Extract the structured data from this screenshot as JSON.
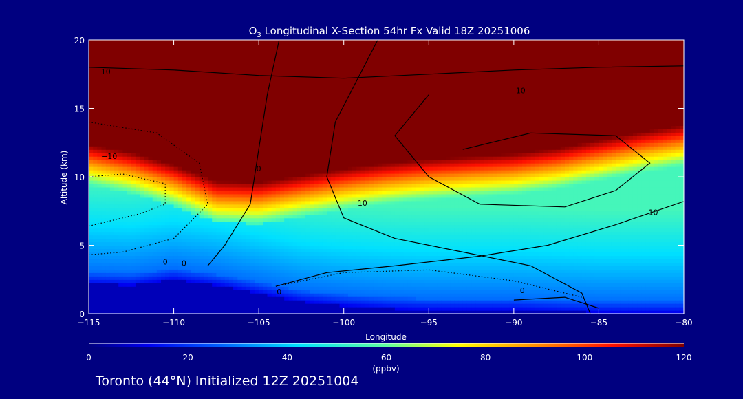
{
  "chart_data": {
    "type": "heatmap",
    "title": "O",
    "title_subscript": "3",
    "title_rest": " Longitudinal X-Section 54hr  Fx Valid 18Z 20251006",
    "xlabel": "Longitude",
    "ylabel": "Altitude (km)",
    "xlim": [
      -115,
      -80
    ],
    "ylim": [
      0,
      20
    ],
    "xticks": [
      -115,
      -110,
      -105,
      -100,
      -95,
      -90,
      -85,
      -80
    ],
    "xtick_labels": [
      "−115",
      "−110",
      "−105",
      "−100",
      "−95",
      "−90",
      "−85",
      "−80"
    ],
    "yticks": [
      0,
      5,
      10,
      15,
      20
    ],
    "ytick_labels": [
      "0",
      "5",
      "10",
      "15",
      "20"
    ],
    "colorbar": {
      "min": 0,
      "max": 120,
      "ticks": [
        0,
        20,
        40,
        60,
        80,
        100,
        120
      ],
      "tick_labels": [
        "0",
        "20",
        "40",
        "60",
        "80",
        "100",
        "120"
      ],
      "unit_label": "(ppbv)"
    },
    "ozone_field": {
      "comment_units": "ppbv",
      "x": [
        -115,
        -112.5,
        -110,
        -107.5,
        -105,
        -102.5,
        -100,
        -97.5,
        -95,
        -92.5,
        -90,
        -87.5,
        -85,
        -82.5,
        -80
      ],
      "y": [
        0,
        1,
        2,
        3,
        4,
        5,
        6,
        7,
        8,
        9,
        10,
        11,
        12,
        13,
        14,
        15,
        16,
        17,
        18,
        19,
        20
      ],
      "tropopause_km": [
        12,
        11.4,
        10.5,
        9.3,
        9.2,
        9.7,
        10.2,
        10.6,
        10.9,
        11.1,
        11.3,
        11.7,
        12.3,
        12.9,
        13.4
      ],
      "surface_km": [
        2.2,
        2.1,
        2.5,
        2.1,
        1.5,
        0.9,
        0.6,
        0.4,
        0.3,
        0.3,
        0.3,
        0.2,
        0.1,
        0.1,
        0.1
      ]
    },
    "contour_labels": [
      "10",
      "−10",
      "0",
      "0",
      "0",
      "0",
      "10",
      "10",
      "0",
      "10"
    ]
  },
  "footer": {
    "caption": "Toronto (44°N) Initialized 12Z 20251004"
  }
}
